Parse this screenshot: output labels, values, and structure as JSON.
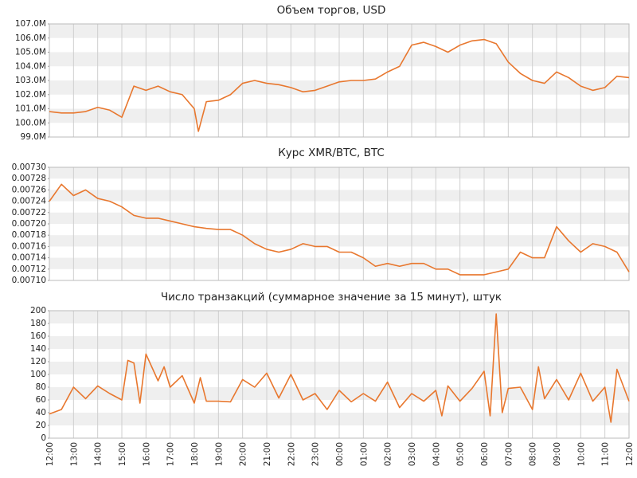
{
  "chart_data": [
    {
      "type": "line",
      "title": "Объем торгов, USD",
      "color": "#e8772e",
      "x": [
        0,
        0.5,
        1,
        1.5,
        2,
        2.5,
        3,
        3.5,
        4,
        4.5,
        5,
        5.5,
        6,
        6.17,
        6.5,
        7,
        7.5,
        8,
        8.5,
        9,
        9.5,
        10,
        10.5,
        11,
        11.5,
        12,
        12.5,
        13,
        13.5,
        14,
        14.5,
        15,
        15.5,
        16,
        16.5,
        17,
        17.5,
        18,
        18.5,
        19,
        19.5,
        20,
        20.5,
        21,
        21.5,
        22,
        22.5,
        23,
        23.5,
        24
      ],
      "values": [
        100800000,
        100700000,
        100700000,
        100800000,
        101100000,
        100900000,
        100400000,
        102600000,
        102300000,
        102600000,
        102200000,
        102000000,
        101000000,
        99400000,
        101500000,
        101600000,
        102000000,
        102800000,
        103000000,
        102800000,
        102700000,
        102500000,
        102200000,
        102300000,
        102600000,
        102900000,
        103000000,
        103000000,
        103100000,
        103600000,
        104000000,
        105500000,
        105700000,
        105400000,
        105000000,
        105500000,
        105800000,
        105900000,
        105600000,
        104300000,
        103500000,
        103000000,
        102800000,
        103600000,
        103200000,
        102600000,
        102300000,
        102500000,
        103300000,
        103200000
      ],
      "xlim": [
        0,
        24
      ],
      "xticks": [
        0,
        1,
        2,
        3,
        4,
        5,
        6,
        7,
        8,
        9,
        10,
        11,
        12,
        13,
        14,
        15,
        16,
        17,
        18,
        19,
        20,
        21,
        22,
        23,
        24
      ],
      "ylim": [
        99000000,
        107000000
      ],
      "yticks": [
        {
          "value": 99000000,
          "label": "99.0M"
        },
        {
          "value": 100000000,
          "label": "100.0M"
        },
        {
          "value": 101000000,
          "label": "101.0M"
        },
        {
          "value": 102000000,
          "label": "102.0M"
        },
        {
          "value": 103000000,
          "label": "103.0M"
        },
        {
          "value": 104000000,
          "label": "104.0M"
        },
        {
          "value": 105000000,
          "label": "105.0M"
        },
        {
          "value": 106000000,
          "label": "106.0M"
        },
        {
          "value": 107000000,
          "label": "107.0M"
        }
      ],
      "grid": true
    },
    {
      "type": "line",
      "title": "Курс XMR/BTC, BTC",
      "color": "#e8772e",
      "x": [
        0,
        0.5,
        1,
        1.5,
        2,
        2.5,
        3,
        3.5,
        4,
        4.5,
        5,
        5.5,
        6,
        6.5,
        7,
        7.5,
        8,
        8.5,
        9,
        9.5,
        10,
        10.5,
        11,
        11.5,
        12,
        12.5,
        13,
        13.5,
        14,
        14.5,
        15,
        15.5,
        16,
        16.5,
        17,
        17.5,
        18,
        18.5,
        19,
        19.5,
        20,
        20.5,
        21,
        21.5,
        22,
        22.5,
        23,
        23.5,
        24
      ],
      "values": [
        0.00724,
        0.00727,
        0.00725,
        0.00726,
        0.007245,
        0.00724,
        0.00723,
        0.007215,
        0.00721,
        0.00721,
        0.007205,
        0.0072,
        0.007195,
        0.007192,
        0.00719,
        0.00719,
        0.00718,
        0.007165,
        0.007155,
        0.00715,
        0.007155,
        0.007165,
        0.00716,
        0.00716,
        0.00715,
        0.00715,
        0.00714,
        0.007125,
        0.00713,
        0.007125,
        0.00713,
        0.00713,
        0.00712,
        0.00712,
        0.00711,
        0.00711,
        0.00711,
        0.007115,
        0.00712,
        0.00715,
        0.00714,
        0.00714,
        0.007195,
        0.00717,
        0.00715,
        0.007165,
        0.00716,
        0.00715,
        0.007115
      ],
      "xlim": [
        0,
        24
      ],
      "xticks": [
        0,
        1,
        2,
        3,
        4,
        5,
        6,
        7,
        8,
        9,
        10,
        11,
        12,
        13,
        14,
        15,
        16,
        17,
        18,
        19,
        20,
        21,
        22,
        23,
        24
      ],
      "ylim": [
        0.0071,
        0.0073
      ],
      "yticks": [
        {
          "value": 0.0071,
          "label": "0.00710"
        },
        {
          "value": 0.00712,
          "label": "0.00712"
        },
        {
          "value": 0.00714,
          "label": "0.00714"
        },
        {
          "value": 0.00716,
          "label": "0.00716"
        },
        {
          "value": 0.00718,
          "label": "0.00718"
        },
        {
          "value": 0.0072,
          "label": "0.00720"
        },
        {
          "value": 0.00722,
          "label": "0.00722"
        },
        {
          "value": 0.00724,
          "label": "0.00724"
        },
        {
          "value": 0.00726,
          "label": "0.00726"
        },
        {
          "value": 0.00728,
          "label": "0.00728"
        },
        {
          "value": 0.0073,
          "label": "0.00730"
        }
      ],
      "grid": true
    },
    {
      "type": "line",
      "title": "Число транзакций (суммарное значение за 15 минут), штук",
      "color": "#e8772e",
      "x": [
        0,
        0.5,
        1,
        1.5,
        2,
        2.5,
        3,
        3.25,
        3.5,
        3.75,
        4,
        4.5,
        4.75,
        5,
        5.5,
        6,
        6.25,
        6.5,
        7,
        7.5,
        8,
        8.5,
        9,
        9.5,
        10,
        10.5,
        11,
        11.5,
        12,
        12.5,
        13,
        13.5,
        14,
        14.5,
        15,
        15.5,
        16,
        16.25,
        16.5,
        17,
        17.5,
        18,
        18.25,
        18.5,
        18.75,
        19,
        19.5,
        20,
        20.25,
        20.5,
        21,
        21.5,
        22,
        22.5,
        23,
        23.25,
        23.5,
        24
      ],
      "values": [
        38,
        45,
        80,
        62,
        82,
        70,
        60,
        122,
        118,
        55,
        132,
        90,
        112,
        80,
        98,
        55,
        95,
        58,
        58,
        57,
        92,
        80,
        102,
        63,
        100,
        60,
        70,
        45,
        75,
        57,
        70,
        58,
        88,
        48,
        70,
        58,
        75,
        35,
        82,
        58,
        78,
        105,
        35,
        195,
        40,
        78,
        80,
        45,
        112,
        62,
        92,
        60,
        102,
        58,
        80,
        25,
        108,
        58
      ],
      "xlim": [
        0,
        24
      ],
      "xticks": [
        {
          "value": 0,
          "label": "12:00"
        },
        {
          "value": 1,
          "label": "13:00"
        },
        {
          "value": 2,
          "label": "14:00"
        },
        {
          "value": 3,
          "label": "15:00"
        },
        {
          "value": 4,
          "label": "16:00"
        },
        {
          "value": 5,
          "label": "17:00"
        },
        {
          "value": 6,
          "label": "18:00"
        },
        {
          "value": 7,
          "label": "19:00"
        },
        {
          "value": 8,
          "label": "20:00"
        },
        {
          "value": 9,
          "label": "21:00"
        },
        {
          "value": 10,
          "label": "22:00"
        },
        {
          "value": 11,
          "label": "23:00"
        },
        {
          "value": 12,
          "label": "00:00"
        },
        {
          "value": 13,
          "label": "01:00"
        },
        {
          "value": 14,
          "label": "02:00"
        },
        {
          "value": 15,
          "label": "03:00"
        },
        {
          "value": 16,
          "label": "04:00"
        },
        {
          "value": 17,
          "label": "05:00"
        },
        {
          "value": 18,
          "label": "06:00"
        },
        {
          "value": 19,
          "label": "07:00"
        },
        {
          "value": 20,
          "label": "08:00"
        },
        {
          "value": 21,
          "label": "09:00"
        },
        {
          "value": 22,
          "label": "10:00"
        },
        {
          "value": 23,
          "label": "11:00"
        },
        {
          "value": 24,
          "label": "12:00"
        }
      ],
      "ylim": [
        0,
        200
      ],
      "yticks": [
        0,
        20,
        40,
        60,
        80,
        100,
        120,
        140,
        160,
        180,
        200
      ],
      "grid": true
    }
  ]
}
